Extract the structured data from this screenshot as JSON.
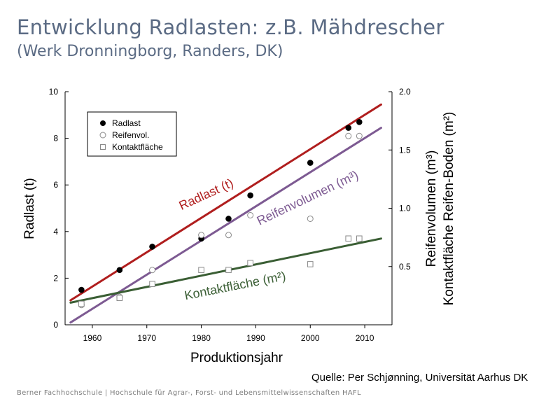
{
  "slide": {
    "title": "Entwicklung Radlasten: z.B. Mähdrescher",
    "subtitle": "(Werk Dronningborg, Randers, DK)",
    "source": "Quelle: Per Schjønning, Universität Aarhus DK",
    "footer": "Berner Fachhochschule | Hochschule für Agrar-, Forst- und Lebensmittelwissenschaften HAFL"
  },
  "colors": {
    "radlast": "#b01e1e",
    "reifenvolumen": "#7d5a92",
    "kontaktflaeche": "#3a5e34",
    "axis": "#000000",
    "marker_open": "#8a8a8a"
  },
  "chart_data": {
    "type": "scatter",
    "title": "",
    "xlabel": "Produktionsjahr",
    "ylabel": "Radlast (t)",
    "y2label_lines": [
      "Reifenvolumen (m³)",
      "Kontaktfläche Reifen-Boden (m²)"
    ],
    "xlim": [
      1955,
      2015
    ],
    "ylim": [
      0,
      10
    ],
    "y2lim": [
      0,
      2.0
    ],
    "x_ticks": [
      "1960",
      "1970",
      "1980",
      "1990",
      "2000",
      "2010"
    ],
    "y_ticks": [
      "0",
      "2",
      "4",
      "6",
      "8",
      "10"
    ],
    "y2_ticks": [
      "0.5",
      "1.0",
      "1.5",
      "2.0"
    ],
    "grid": false,
    "legend": {
      "position": "top-left",
      "entries": [
        {
          "label": "Radlast",
          "marker": "filled-circle"
        },
        {
          "label": "Reifenvol.",
          "marker": "open-circle"
        },
        {
          "label": "Kontaktfläche",
          "marker": "open-square"
        }
      ]
    },
    "series": [
      {
        "name": "Radlast",
        "axis": "left",
        "marker": "filled-circle",
        "x": [
          1958,
          1965,
          1971,
          1980,
          1985,
          1989,
          2000,
          2007,
          2009
        ],
        "y": [
          1.5,
          2.35,
          3.35,
          3.7,
          4.55,
          5.55,
          6.95,
          8.45,
          8.7
        ]
      },
      {
        "name": "Reifenvol.",
        "axis": "right",
        "marker": "open-circle",
        "x": [
          1958,
          1965,
          1971,
          1980,
          1985,
          1989,
          2000,
          2007,
          2009
        ],
        "y": [
          0.17,
          0.24,
          0.47,
          0.77,
          0.77,
          0.94,
          0.91,
          1.62,
          1.62
        ]
      },
      {
        "name": "Kontaktfläche",
        "axis": "right",
        "marker": "open-square",
        "x": [
          1958,
          1965,
          1971,
          1980,
          1985,
          1989,
          2000,
          2007,
          2009
        ],
        "y": [
          0.18,
          0.23,
          0.35,
          0.47,
          0.47,
          0.53,
          0.52,
          0.74,
          0.74
        ]
      }
    ],
    "trend_lines": [
      {
        "label": "Radlast (t)",
        "axis": "left",
        "x": [
          1956,
          2013
        ],
        "y": [
          1.05,
          9.45
        ]
      },
      {
        "label": "Reifenvolumen (m³)",
        "axis": "right",
        "x": [
          1956,
          2013
        ],
        "y": [
          0.02,
          1.69
        ]
      },
      {
        "label": "Kontaktfläche (m²)",
        "axis": "right",
        "x": [
          1956,
          2013
        ],
        "y": [
          0.19,
          0.74
        ]
      }
    ]
  }
}
